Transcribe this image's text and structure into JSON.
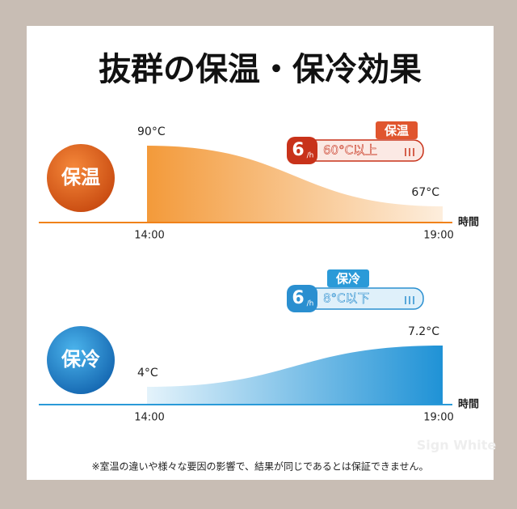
{
  "title": "抜群の保温・保冷効果",
  "chart_data": [
    {
      "type": "area",
      "badge": "保温",
      "x": [
        "14:00",
        "19:00"
      ],
      "values": [
        90,
        67
      ],
      "value_labels": [
        "90°C",
        "67°C"
      ],
      "xlabel": "時間",
      "color": "#f0821a",
      "callout": {
        "number": "6",
        "unit": "/h",
        "tag": "保温",
        "text": "60°C以上"
      }
    },
    {
      "type": "area",
      "badge": "保冷",
      "x": [
        "14:00",
        "19:00"
      ],
      "values": [
        4,
        7.2
      ],
      "value_labels": [
        "4°C",
        "7.2°C"
      ],
      "xlabel": "時間",
      "color": "#2a9ad8",
      "callout": {
        "number": "6",
        "unit": "/h",
        "tag": "保冷",
        "text": "8°C以下"
      }
    }
  ],
  "note": "※室温の違いや様々な要因の影響で、結果が同じであるとは保証できません。",
  "watermark": "Sign White"
}
